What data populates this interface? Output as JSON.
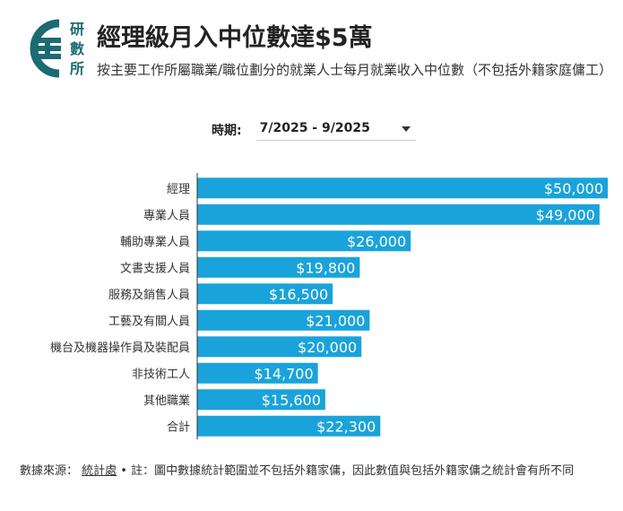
{
  "logo": {
    "text_1": "研",
    "text_2": "數",
    "text_3": "所",
    "icon": "research-logo-icon"
  },
  "title": "經理級月入中位數達$5萬",
  "subtitle": "按主要工作所屬職業/職位劃分的就業人士每月就業收入中位數（不包括外籍家庭傭工）",
  "period": {
    "label": "時期:",
    "value": "7/2025 - 9/2025"
  },
  "footer": {
    "prefix": "數據來源：",
    "source": "統計處",
    "separator": " • ",
    "note": "註：圖中數據統計範圍並不包括外籍家傭，因此數值與包括外籍家傭之統計會有所不同"
  },
  "colors": {
    "bar": "#1aa3da",
    "brand": "#1c6b73",
    "axis": "#333333"
  },
  "chart_data": {
    "type": "bar",
    "orientation": "horizontal",
    "title": "經理級月入中位數達$5萬",
    "categories": [
      "經理",
      "專業人員",
      "輔助專業人員",
      "文書支援人員",
      "服務及銷售人員",
      "工藝及有關人員",
      "機台及機器操作員及裝配員",
      "非技術工人",
      "其他職業",
      "合計"
    ],
    "values": [
      50000,
      49000,
      26000,
      19800,
      16500,
      21000,
      20000,
      14700,
      15600,
      22300
    ],
    "value_labels": [
      "$50,000",
      "$49,000",
      "$26,000",
      "$19,800",
      "$16,500",
      "$21,000",
      "$20,000",
      "$14,700",
      "$15,600",
      "$22,300"
    ],
    "xlim": [
      0,
      50000
    ],
    "xlabel": "",
    "ylabel": "",
    "grid": false
  }
}
